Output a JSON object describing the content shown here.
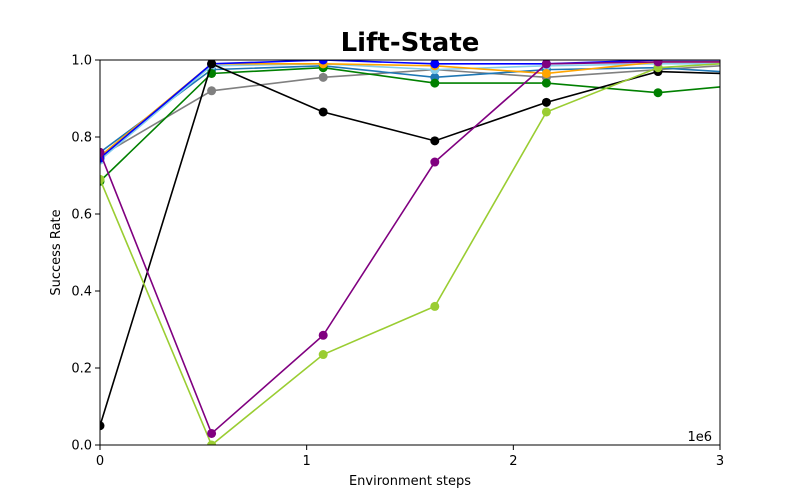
{
  "chart_data": {
    "type": "line",
    "title": "Lift-State",
    "xlabel": "Environment steps",
    "ylabel": "Success Rate",
    "x_offset_label": "1e6",
    "xlim": [
      0,
      3
    ],
    "ylim": [
      0,
      1
    ],
    "x_ticks": [
      0,
      1,
      2,
      3
    ],
    "x_tick_labels": [
      "0",
      "1",
      "2",
      "3"
    ],
    "y_ticks": [
      0,
      0.2,
      0.4,
      0.6,
      0.8,
      1.0
    ],
    "y_tick_labels": [
      "0.0",
      "0.2",
      "0.4",
      "0.6",
      "0.8",
      "1.0"
    ],
    "grid": false,
    "legend": "none",
    "x": [
      0,
      0.54,
      1.08,
      1.62,
      2.16,
      2.7,
      3.0
    ],
    "series": [
      {
        "color": "#808080",
        "values": [
          0.75,
          0.92,
          0.955,
          0.975,
          0.955,
          0.975,
          0.985
        ]
      },
      {
        "color": "#1f77b4",
        "values": [
          0.76,
          0.975,
          0.985,
          0.955,
          0.975,
          0.98,
          0.97
        ]
      },
      {
        "color": "#87ceeb",
        "values": [
          0.74,
          0.985,
          0.99,
          0.975,
          0.985,
          0.99,
          0.99
        ]
      },
      {
        "color": "#008000",
        "values": [
          0.685,
          0.965,
          0.98,
          0.94,
          0.94,
          0.915,
          0.93
        ]
      },
      {
        "color": "#ffa500",
        "values": [
          0.75,
          0.99,
          0.99,
          0.985,
          0.965,
          0.995,
          0.995
        ]
      },
      {
        "color": "#0000ff",
        "values": [
          0.745,
          0.99,
          1.0,
          0.99,
          0.99,
          1.0,
          1.0
        ]
      },
      {
        "color": "#000000",
        "values": [
          0.05,
          0.99,
          0.865,
          0.79,
          0.89,
          0.97,
          0.965
        ]
      },
      {
        "color": "#9acd32",
        "values": [
          0.69,
          0.0,
          0.235,
          0.36,
          0.865,
          0.98,
          0.99
        ]
      },
      {
        "color": "#800080",
        "values": [
          0.76,
          0.03,
          0.285,
          0.735,
          0.99,
          0.995,
          0.995
        ]
      }
    ]
  }
}
